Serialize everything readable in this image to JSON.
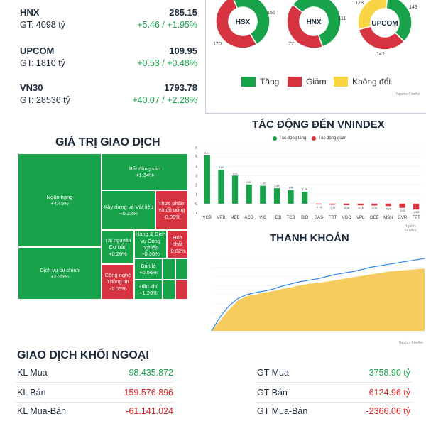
{
  "indices": [
    {
      "name": "HNX",
      "gt": "GT: 4098 tỷ",
      "value": "285.15",
      "change": "+5.46 / +1.95%"
    },
    {
      "name": "UPCOM",
      "gt": "GT: 1810 tỷ",
      "value": "109.95",
      "change": "+0.53 / +0.48%"
    },
    {
      "name": "VN30",
      "gt": "GT: 28536 tỷ",
      "value": "1793.78",
      "change": "+40.07 / +2.28%"
    }
  ],
  "breadth": [
    {
      "label": "HSX",
      "up": 156,
      "down": 170,
      "flat": 0
    },
    {
      "label": "HNX",
      "up": 111,
      "down": 77,
      "flat": 0
    },
    {
      "label": "UPCOM",
      "up": 149,
      "down": 141,
      "flat": 128
    }
  ],
  "legend": {
    "up": "Tăng",
    "down": "Giảm",
    "flat": "Không đổi"
  },
  "colors": {
    "up": "#18a34a",
    "down": "#d63440",
    "flat": "#fbd444",
    "line": "#2f86eb",
    "area": "#f6c343"
  },
  "source": "Nguồn: FireAnt",
  "treemap": {
    "title": "GIÁ TRỊ GIAO DỊCH",
    "tiles": [
      {
        "name": "Ngân hàng",
        "change": "+4.45%",
        "dir": "up"
      },
      {
        "name": "Dịch vụ tài chính",
        "change": "+2.35%",
        "dir": "up"
      },
      {
        "name": "Bất động sản",
        "change": "+1.34%",
        "dir": "up"
      },
      {
        "name": "Xây dựng và Vật liệu",
        "change": "+0.22%",
        "dir": "up"
      },
      {
        "name": "Thực phẩm và đồ uống",
        "change": "-0.09%",
        "dir": "down"
      },
      {
        "name": "Tài nguyên Cơ bản",
        "change": "+0.26%",
        "dir": "up"
      },
      {
        "name": "Hàng & Dịch vụ Công nghiệp",
        "change": "+0.36%",
        "dir": "up"
      },
      {
        "name": "Hóa chất",
        "change": "-0.82%",
        "dir": "down"
      },
      {
        "name": "Công nghệ Thông tin",
        "change": "-1.05%",
        "dir": "down"
      },
      {
        "name": "Bán lẻ",
        "change": "+0.56%",
        "dir": "up"
      },
      {
        "name": "Dầu khí",
        "change": "+1.23%",
        "dir": "up"
      }
    ]
  },
  "impact": {
    "title": "TÁC ĐỘNG ĐẾN VNINDEX",
    "legend_up": "Tác động tăng",
    "legend_down": "Tác động giảm"
  },
  "liquidity": {
    "title": "THANH KHOẢN"
  },
  "chart_data": [
    {
      "type": "bar",
      "categories": [
        "VCB",
        "VPB",
        "MBB",
        "ACB",
        "VIC",
        "HDB",
        "TCB",
        "BID",
        "GAS",
        "FRT",
        "VGC",
        "VPL",
        "GEE",
        "MSN",
        "GVR",
        "FPT"
      ],
      "values": [
        5.17,
        3.64,
        3.01,
        2.06,
        1.92,
        1.65,
        1.46,
        1.28,
        -0.1,
        -0.12,
        -0.16,
        -0.18,
        -0.2,
        -0.26,
        -0.45,
        -0.63
      ],
      "ylim": [
        -1,
        6
      ]
    },
    {
      "type": "area",
      "series": [
        {
          "values": [
            0,
            20,
            35,
            45,
            50,
            53,
            55,
            58,
            62,
            65,
            68,
            70,
            72,
            75,
            78,
            80,
            82,
            85,
            88,
            90,
            92,
            94,
            96,
            98,
            100
          ]
        },
        {
          "values": [
            0,
            15,
            30,
            42,
            48,
            50,
            53,
            55,
            58,
            60,
            63,
            65,
            66,
            68,
            70,
            72,
            74,
            76,
            78,
            80,
            82,
            83,
            84,
            85,
            86
          ]
        }
      ]
    }
  ],
  "foreign": {
    "title": "GIAO DỊCH KHỐI NGOẠI",
    "left": [
      {
        "label": "KL Mua",
        "value": "98.435.872",
        "dir": "pos"
      },
      {
        "label": "KL Bán",
        "value": "159.576.896",
        "dir": "neg"
      },
      {
        "label": "KL Mua-Bán",
        "value": "-61.141.024",
        "dir": "neg"
      }
    ],
    "right": [
      {
        "label": "GT Mua",
        "value": "3758.90 tỷ",
        "dir": "pos"
      },
      {
        "label": "GT Bán",
        "value": "6124.96 tỷ",
        "dir": "neg"
      },
      {
        "label": "GT Mua-Bán",
        "value": "-2366.06 tỷ",
        "dir": "neg"
      }
    ]
  }
}
